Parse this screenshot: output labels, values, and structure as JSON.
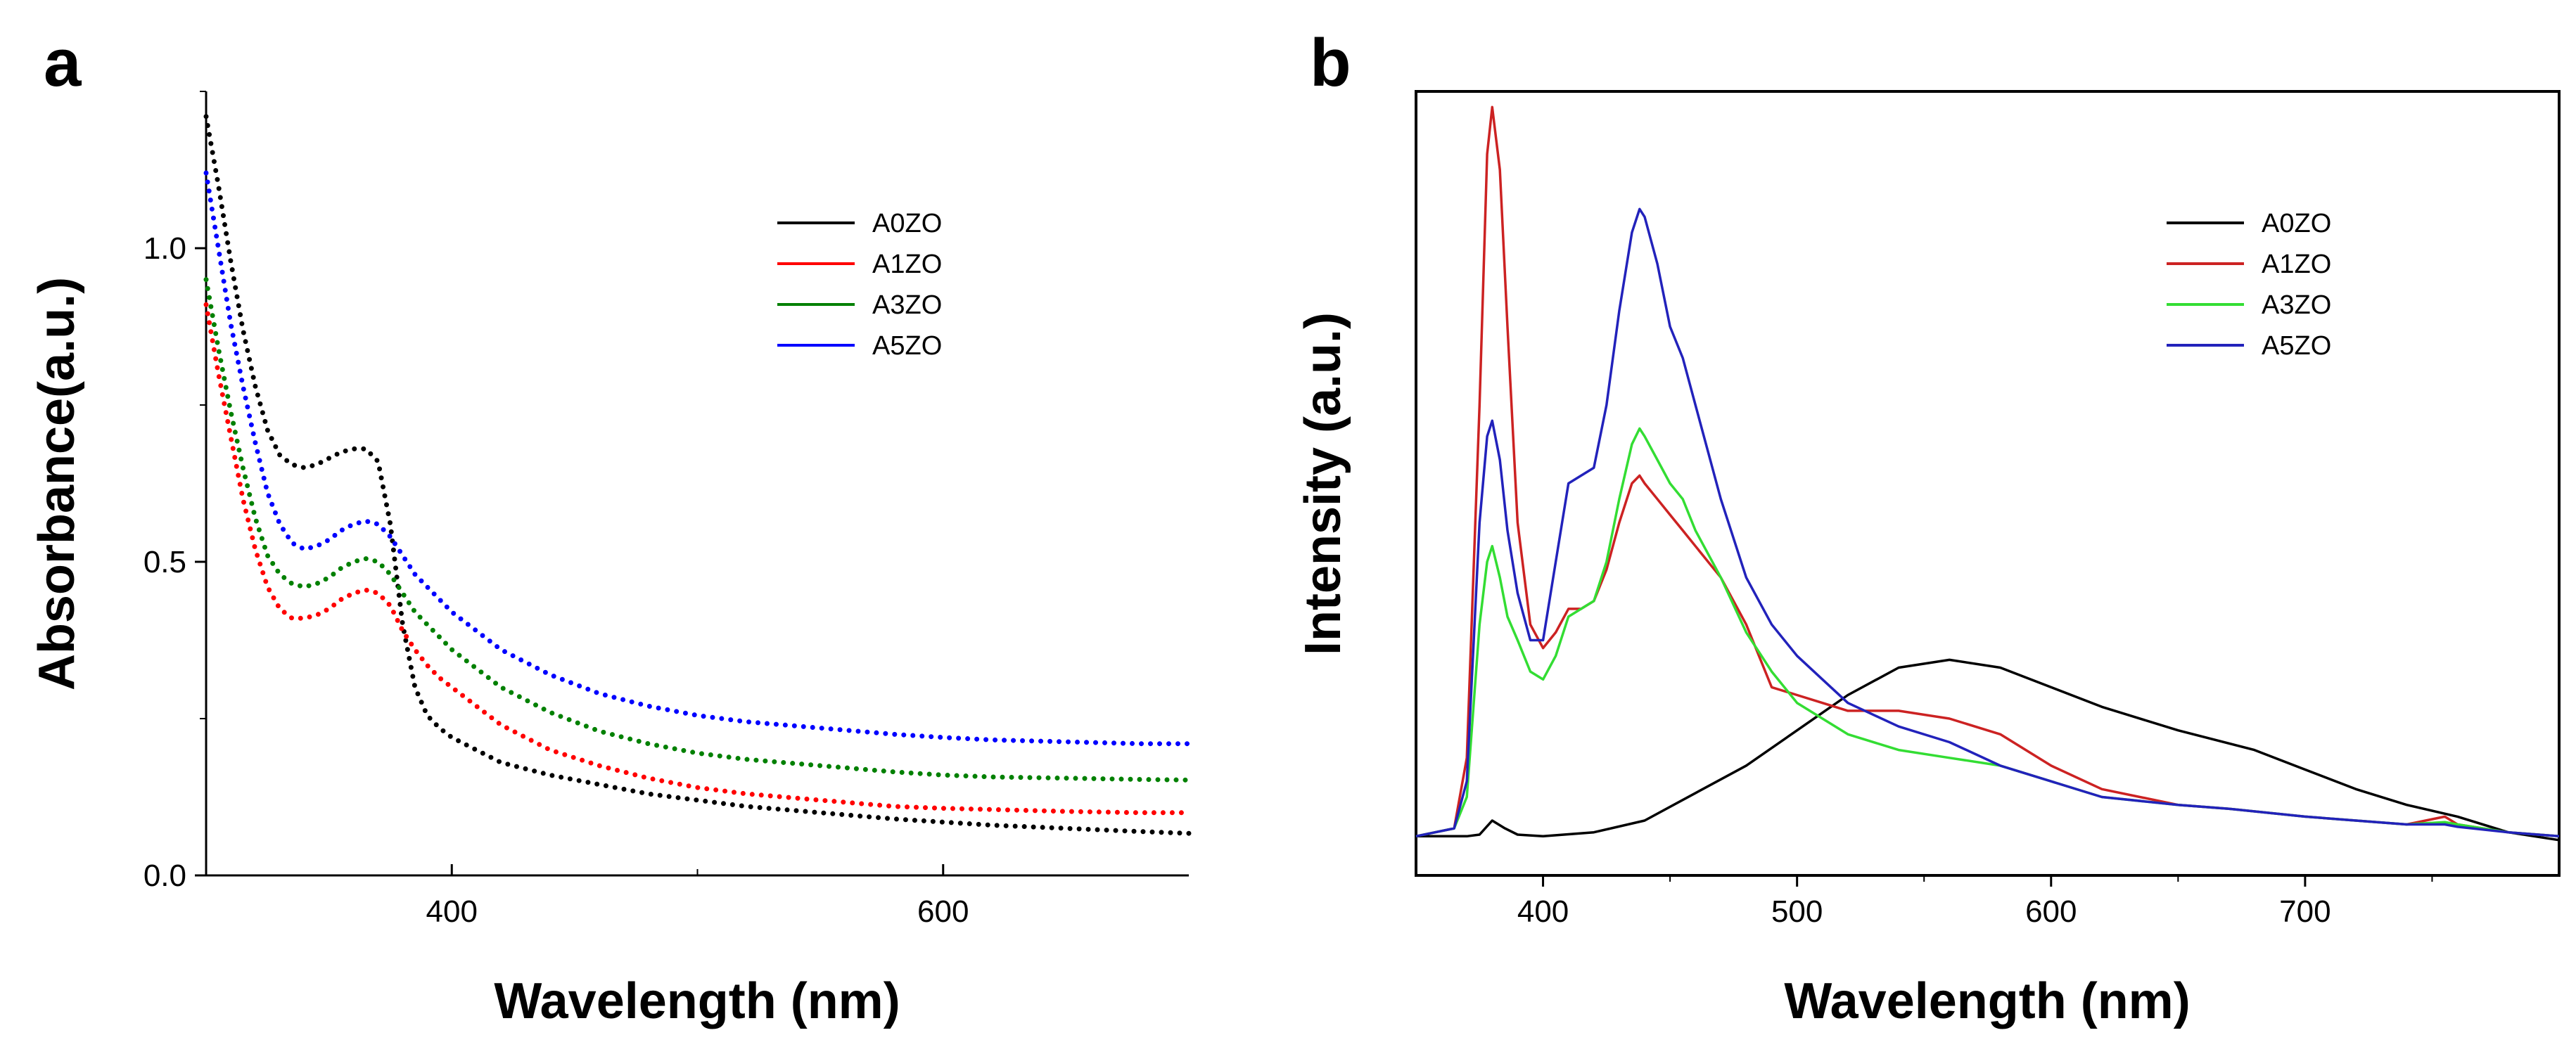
{
  "chart_data": [
    {
      "panel": "a",
      "type": "line",
      "line_style": "dotted",
      "xlabel": "Wavelength (nm)",
      "ylabel": "Absorbance(a.u.)",
      "xlim": [
        300,
        700
      ],
      "ylim": [
        0,
        1.25
      ],
      "x_ticks": [
        400,
        600
      ],
      "x_tick_labels": [
        "400",
        "600"
      ],
      "y_ticks": [
        0.0,
        0.5,
        1.0
      ],
      "y_tick_labels": [
        "0.0",
        "0.5",
        "1.0"
      ],
      "legend": "top-right",
      "series": [
        {
          "name": "A0ZO",
          "color": "#000000",
          "x": [
            300,
            305,
            310,
            315,
            320,
            325,
            330,
            335,
            340,
            345,
            350,
            355,
            360,
            365,
            370,
            375,
            380,
            385,
            390,
            395,
            400,
            410,
            420,
            440,
            460,
            480,
            500,
            520,
            550,
            580,
            600,
            620,
            650,
            680,
            700
          ],
          "y": [
            1.21,
            1.1,
            0.98,
            0.87,
            0.78,
            0.71,
            0.67,
            0.655,
            0.65,
            0.655,
            0.665,
            0.675,
            0.68,
            0.68,
            0.66,
            0.56,
            0.4,
            0.3,
            0.255,
            0.235,
            0.22,
            0.2,
            0.18,
            0.16,
            0.145,
            0.13,
            0.12,
            0.11,
            0.1,
            0.09,
            0.085,
            0.08,
            0.075,
            0.07,
            0.067
          ]
        },
        {
          "name": "A1ZO",
          "color": "#ff0000",
          "x": [
            300,
            305,
            310,
            315,
            320,
            325,
            330,
            335,
            340,
            345,
            350,
            355,
            360,
            365,
            370,
            375,
            380,
            385,
            390,
            395,
            400,
            410,
            420,
            440,
            460,
            480,
            500,
            520,
            550,
            580,
            600,
            620,
            650,
            680,
            700
          ],
          "y": [
            0.91,
            0.8,
            0.7,
            0.6,
            0.52,
            0.46,
            0.425,
            0.41,
            0.41,
            0.415,
            0.425,
            0.44,
            0.45,
            0.455,
            0.45,
            0.43,
            0.39,
            0.36,
            0.335,
            0.315,
            0.3,
            0.27,
            0.24,
            0.2,
            0.175,
            0.155,
            0.14,
            0.13,
            0.12,
            0.11,
            0.107,
            0.105,
            0.102,
            0.1,
            0.1
          ]
        },
        {
          "name": "A3ZO",
          "color": "#008000",
          "x": [
            300,
            305,
            310,
            315,
            320,
            325,
            330,
            335,
            340,
            345,
            350,
            355,
            360,
            365,
            370,
            375,
            380,
            385,
            390,
            395,
            400,
            410,
            420,
            440,
            460,
            480,
            500,
            520,
            550,
            580,
            600,
            620,
            650,
            680,
            700
          ],
          "y": [
            0.95,
            0.84,
            0.74,
            0.65,
            0.57,
            0.51,
            0.48,
            0.465,
            0.46,
            0.465,
            0.475,
            0.49,
            0.5,
            0.505,
            0.5,
            0.48,
            0.45,
            0.42,
            0.4,
            0.38,
            0.36,
            0.33,
            0.3,
            0.26,
            0.23,
            0.21,
            0.195,
            0.185,
            0.175,
            0.165,
            0.16,
            0.157,
            0.155,
            0.153,
            0.152
          ]
        },
        {
          "name": "A5ZO",
          "color": "#0000ff",
          "x": [
            300,
            305,
            310,
            315,
            320,
            325,
            330,
            335,
            340,
            345,
            350,
            355,
            360,
            365,
            370,
            375,
            380,
            385,
            390,
            395,
            400,
            410,
            420,
            440,
            460,
            480,
            500,
            520,
            550,
            580,
            600,
            620,
            650,
            680,
            700
          ],
          "y": [
            1.12,
            1.0,
            0.88,
            0.78,
            0.69,
            0.61,
            0.56,
            0.53,
            0.52,
            0.525,
            0.535,
            0.55,
            0.56,
            0.565,
            0.56,
            0.54,
            0.51,
            0.48,
            0.46,
            0.44,
            0.42,
            0.39,
            0.36,
            0.32,
            0.29,
            0.27,
            0.255,
            0.245,
            0.235,
            0.225,
            0.22,
            0.216,
            0.213,
            0.21,
            0.21
          ]
        }
      ]
    },
    {
      "panel": "b",
      "type": "line",
      "line_style": "solid",
      "xlabel": "Wavelength (nm)",
      "ylabel": "Intensity (a.u.)",
      "xlim": [
        350,
        800
      ],
      "ylim": [
        0,
        1.0
      ],
      "x_ticks": [
        400,
        500,
        600,
        700
      ],
      "x_tick_labels": [
        "400",
        "500",
        "600",
        "700"
      ],
      "y_ticks": [],
      "y_tick_labels": [],
      "legend": "top-right",
      "series": [
        {
          "name": "A0ZO",
          "color": "#000000",
          "x": [
            350,
            370,
            375,
            380,
            385,
            390,
            400,
            420,
            440,
            460,
            480,
            500,
            520,
            540,
            560,
            580,
            600,
            620,
            650,
            680,
            700,
            720,
            740,
            760,
            780,
            800
          ],
          "y": [
            0.05,
            0.05,
            0.052,
            0.07,
            0.06,
            0.052,
            0.05,
            0.055,
            0.07,
            0.105,
            0.14,
            0.185,
            0.23,
            0.265,
            0.275,
            0.265,
            0.24,
            0.215,
            0.185,
            0.16,
            0.135,
            0.11,
            0.09,
            0.075,
            0.055,
            0.045
          ]
        },
        {
          "name": "A1ZO",
          "color": "#cc2222",
          "x": [
            350,
            365,
            370,
            375,
            378,
            380,
            383,
            386,
            390,
            395,
            400,
            405,
            410,
            415,
            420,
            425,
            430,
            435,
            438,
            440,
            445,
            450,
            455,
            460,
            470,
            480,
            490,
            500,
            510,
            520,
            540,
            560,
            580,
            600,
            620,
            650,
            670,
            700,
            720,
            740,
            755,
            760,
            780,
            800
          ],
          "y": [
            0.05,
            0.06,
            0.15,
            0.6,
            0.92,
            0.98,
            0.9,
            0.7,
            0.45,
            0.32,
            0.29,
            0.31,
            0.34,
            0.34,
            0.35,
            0.39,
            0.45,
            0.5,
            0.51,
            0.5,
            0.48,
            0.46,
            0.44,
            0.42,
            0.38,
            0.32,
            0.24,
            0.23,
            0.22,
            0.21,
            0.21,
            0.2,
            0.18,
            0.14,
            0.11,
            0.09,
            0.085,
            0.075,
            0.07,
            0.065,
            0.075,
            0.065,
            0.055,
            0.05
          ]
        },
        {
          "name": "A3ZO",
          "color": "#33dd33",
          "x": [
            350,
            365,
            370,
            375,
            378,
            380,
            383,
            386,
            390,
            395,
            400,
            405,
            410,
            415,
            420,
            425,
            430,
            435,
            438,
            440,
            445,
            450,
            455,
            460,
            470,
            480,
            490,
            500,
            510,
            520,
            540,
            560,
            580,
            600,
            620,
            650,
            670,
            700,
            720,
            740,
            755,
            760,
            780,
            800
          ],
          "y": [
            0.05,
            0.06,
            0.1,
            0.32,
            0.4,
            0.42,
            0.38,
            0.33,
            0.3,
            0.26,
            0.25,
            0.28,
            0.33,
            0.34,
            0.35,
            0.4,
            0.48,
            0.55,
            0.57,
            0.56,
            0.53,
            0.5,
            0.48,
            0.44,
            0.38,
            0.31,
            0.26,
            0.22,
            0.2,
            0.18,
            0.16,
            0.15,
            0.14,
            0.12,
            0.1,
            0.09,
            0.085,
            0.075,
            0.07,
            0.065,
            0.068,
            0.065,
            0.055,
            0.05
          ]
        },
        {
          "name": "A5ZO",
          "color": "#2222bb",
          "x": [
            350,
            365,
            370,
            375,
            378,
            380,
            383,
            386,
            390,
            395,
            400,
            405,
            410,
            415,
            420,
            425,
            430,
            435,
            438,
            440,
            445,
            450,
            455,
            460,
            470,
            480,
            490,
            500,
            510,
            520,
            540,
            560,
            580,
            600,
            620,
            650,
            670,
            700,
            720,
            740,
            755,
            760,
            780,
            800
          ],
          "y": [
            0.05,
            0.06,
            0.12,
            0.45,
            0.56,
            0.58,
            0.53,
            0.44,
            0.36,
            0.3,
            0.3,
            0.4,
            0.5,
            0.51,
            0.52,
            0.6,
            0.72,
            0.82,
            0.85,
            0.84,
            0.78,
            0.7,
            0.66,
            0.6,
            0.48,
            0.38,
            0.32,
            0.28,
            0.25,
            0.22,
            0.19,
            0.17,
            0.14,
            0.12,
            0.1,
            0.09,
            0.085,
            0.075,
            0.07,
            0.065,
            0.065,
            0.062,
            0.055,
            0.05
          ]
        }
      ]
    }
  ]
}
